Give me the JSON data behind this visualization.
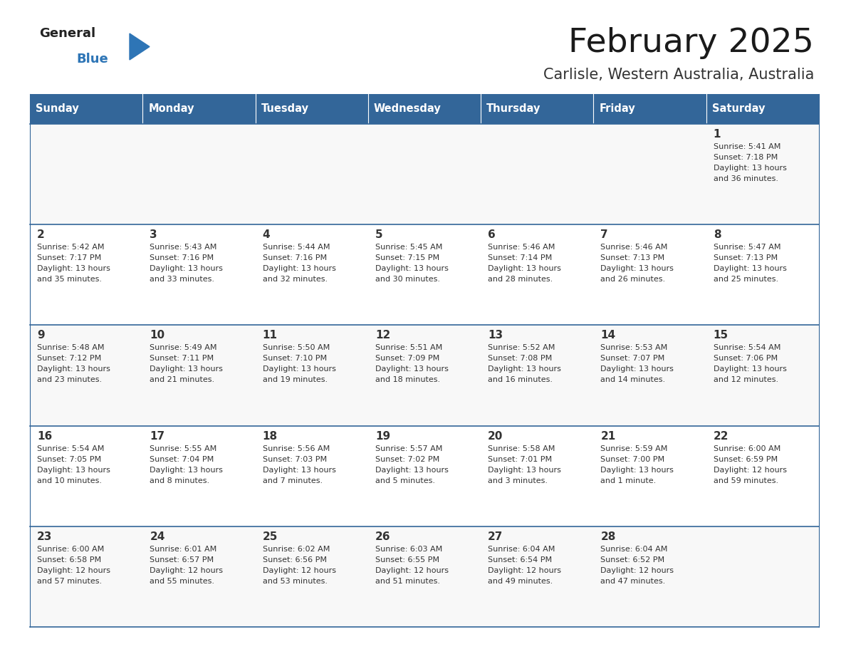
{
  "title": "February 2025",
  "subtitle": "Carlisle, Western Australia, Australia",
  "header_color": "#336699",
  "header_text_color": "#FFFFFF",
  "cell_bg_even": "#FFFFFF",
  "cell_bg_odd": "#F5F5F5",
  "border_color": "#336699",
  "text_color": "#333333",
  "logo_general_color": "#222222",
  "logo_blue_color": "#2E75B6",
  "logo_triangle_color": "#2E75B6",
  "days_of_week": [
    "Sunday",
    "Monday",
    "Tuesday",
    "Wednesday",
    "Thursday",
    "Friday",
    "Saturday"
  ],
  "calendar_data": [
    [
      {
        "day": null,
        "sunrise": null,
        "sunset": null,
        "daylight_line1": null,
        "daylight_line2": null
      },
      {
        "day": null,
        "sunrise": null,
        "sunset": null,
        "daylight_line1": null,
        "daylight_line2": null
      },
      {
        "day": null,
        "sunrise": null,
        "sunset": null,
        "daylight_line1": null,
        "daylight_line2": null
      },
      {
        "day": null,
        "sunrise": null,
        "sunset": null,
        "daylight_line1": null,
        "daylight_line2": null
      },
      {
        "day": null,
        "sunrise": null,
        "sunset": null,
        "daylight_line1": null,
        "daylight_line2": null
      },
      {
        "day": null,
        "sunrise": null,
        "sunset": null,
        "daylight_line1": null,
        "daylight_line2": null
      },
      {
        "day": 1,
        "sunrise": "5:41 AM",
        "sunset": "7:18 PM",
        "daylight_line1": "13 hours",
        "daylight_line2": "and 36 minutes."
      }
    ],
    [
      {
        "day": 2,
        "sunrise": "5:42 AM",
        "sunset": "7:17 PM",
        "daylight_line1": "13 hours",
        "daylight_line2": "and 35 minutes."
      },
      {
        "day": 3,
        "sunrise": "5:43 AM",
        "sunset": "7:16 PM",
        "daylight_line1": "13 hours",
        "daylight_line2": "and 33 minutes."
      },
      {
        "day": 4,
        "sunrise": "5:44 AM",
        "sunset": "7:16 PM",
        "daylight_line1": "13 hours",
        "daylight_line2": "and 32 minutes."
      },
      {
        "day": 5,
        "sunrise": "5:45 AM",
        "sunset": "7:15 PM",
        "daylight_line1": "13 hours",
        "daylight_line2": "and 30 minutes."
      },
      {
        "day": 6,
        "sunrise": "5:46 AM",
        "sunset": "7:14 PM",
        "daylight_line1": "13 hours",
        "daylight_line2": "and 28 minutes."
      },
      {
        "day": 7,
        "sunrise": "5:46 AM",
        "sunset": "7:13 PM",
        "daylight_line1": "13 hours",
        "daylight_line2": "and 26 minutes."
      },
      {
        "day": 8,
        "sunrise": "5:47 AM",
        "sunset": "7:13 PM",
        "daylight_line1": "13 hours",
        "daylight_line2": "and 25 minutes."
      }
    ],
    [
      {
        "day": 9,
        "sunrise": "5:48 AM",
        "sunset": "7:12 PM",
        "daylight_line1": "13 hours",
        "daylight_line2": "and 23 minutes."
      },
      {
        "day": 10,
        "sunrise": "5:49 AM",
        "sunset": "7:11 PM",
        "daylight_line1": "13 hours",
        "daylight_line2": "and 21 minutes."
      },
      {
        "day": 11,
        "sunrise": "5:50 AM",
        "sunset": "7:10 PM",
        "daylight_line1": "13 hours",
        "daylight_line2": "and 19 minutes."
      },
      {
        "day": 12,
        "sunrise": "5:51 AM",
        "sunset": "7:09 PM",
        "daylight_line1": "13 hours",
        "daylight_line2": "and 18 minutes."
      },
      {
        "day": 13,
        "sunrise": "5:52 AM",
        "sunset": "7:08 PM",
        "daylight_line1": "13 hours",
        "daylight_line2": "and 16 minutes."
      },
      {
        "day": 14,
        "sunrise": "5:53 AM",
        "sunset": "7:07 PM",
        "daylight_line1": "13 hours",
        "daylight_line2": "and 14 minutes."
      },
      {
        "day": 15,
        "sunrise": "5:54 AM",
        "sunset": "7:06 PM",
        "daylight_line1": "13 hours",
        "daylight_line2": "and 12 minutes."
      }
    ],
    [
      {
        "day": 16,
        "sunrise": "5:54 AM",
        "sunset": "7:05 PM",
        "daylight_line1": "13 hours",
        "daylight_line2": "and 10 minutes."
      },
      {
        "day": 17,
        "sunrise": "5:55 AM",
        "sunset": "7:04 PM",
        "daylight_line1": "13 hours",
        "daylight_line2": "and 8 minutes."
      },
      {
        "day": 18,
        "sunrise": "5:56 AM",
        "sunset": "7:03 PM",
        "daylight_line1": "13 hours",
        "daylight_line2": "and 7 minutes."
      },
      {
        "day": 19,
        "sunrise": "5:57 AM",
        "sunset": "7:02 PM",
        "daylight_line1": "13 hours",
        "daylight_line2": "and 5 minutes."
      },
      {
        "day": 20,
        "sunrise": "5:58 AM",
        "sunset": "7:01 PM",
        "daylight_line1": "13 hours",
        "daylight_line2": "and 3 minutes."
      },
      {
        "day": 21,
        "sunrise": "5:59 AM",
        "sunset": "7:00 PM",
        "daylight_line1": "13 hours",
        "daylight_line2": "and 1 minute."
      },
      {
        "day": 22,
        "sunrise": "6:00 AM",
        "sunset": "6:59 PM",
        "daylight_line1": "12 hours",
        "daylight_line2": "and 59 minutes."
      }
    ],
    [
      {
        "day": 23,
        "sunrise": "6:00 AM",
        "sunset": "6:58 PM",
        "daylight_line1": "12 hours",
        "daylight_line2": "and 57 minutes."
      },
      {
        "day": 24,
        "sunrise": "6:01 AM",
        "sunset": "6:57 PM",
        "daylight_line1": "12 hours",
        "daylight_line2": "and 55 minutes."
      },
      {
        "day": 25,
        "sunrise": "6:02 AM",
        "sunset": "6:56 PM",
        "daylight_line1": "12 hours",
        "daylight_line2": "and 53 minutes."
      },
      {
        "day": 26,
        "sunrise": "6:03 AM",
        "sunset": "6:55 PM",
        "daylight_line1": "12 hours",
        "daylight_line2": "and 51 minutes."
      },
      {
        "day": 27,
        "sunrise": "6:04 AM",
        "sunset": "6:54 PM",
        "daylight_line1": "12 hours",
        "daylight_line2": "and 49 minutes."
      },
      {
        "day": 28,
        "sunrise": "6:04 AM",
        "sunset": "6:52 PM",
        "daylight_line1": "12 hours",
        "daylight_line2": "and 47 minutes."
      },
      {
        "day": null,
        "sunrise": null,
        "sunset": null,
        "daylight_line1": null,
        "daylight_line2": null
      }
    ]
  ],
  "fig_width": 11.88,
  "fig_height": 9.18,
  "dpi": 100
}
